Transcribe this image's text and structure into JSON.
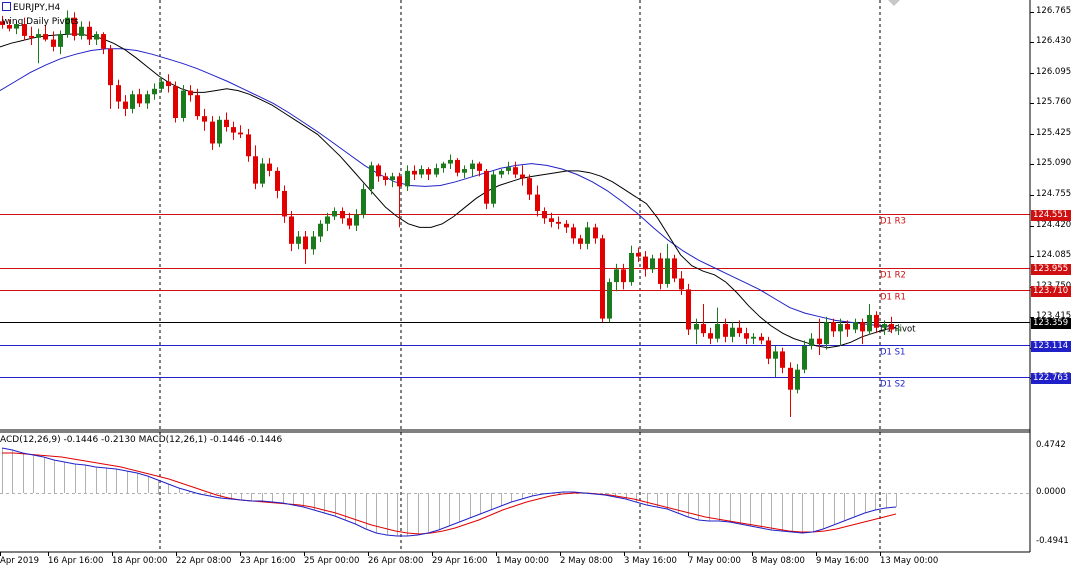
{
  "header": {
    "symbol_label": "EURJPY,H4",
    "indicator_label": "wing Daily Pivots"
  },
  "macd_label": "ACD(12,26,9) -0.1446 -0.2130 MACD(12,26,1) -0.1446 -0.1446",
  "colors": {
    "bull": "#1b7a1b",
    "bear": "#e00000",
    "ma_fast": "#000000",
    "ma_slow": "#2020c8",
    "resistance": "#d01010",
    "support": "#2020c8",
    "pivot": "#000000",
    "macd_signal": "#e00000",
    "macd_main": "#2020c8",
    "histogram": "#b0b0b0"
  },
  "price_axis": {
    "ticks": [
      "126.765",
      "126.430",
      "126.095",
      "125.760",
      "125.425",
      "125.090",
      "124.755",
      "124.420",
      "124.085",
      "123.750",
      "123.415",
      "123.080",
      "122.745"
    ],
    "ylim": [
      122.2,
      126.85
    ]
  },
  "pivots": [
    {
      "name": "D1 R3",
      "value": 124.551,
      "tag": "124.551",
      "kind": "resistance"
    },
    {
      "name": "D1 R2",
      "value": 123.955,
      "tag": "123.955",
      "kind": "resistance"
    },
    {
      "name": "D1 R1",
      "value": 123.71,
      "tag": "123.710",
      "kind": "resistance"
    },
    {
      "name": "D1 Pivot",
      "value": 123.359,
      "tag": "123.359",
      "kind": "pivot"
    },
    {
      "name": "D1 S1",
      "value": 123.114,
      "tag": "123.114",
      "kind": "support"
    },
    {
      "name": "D1 S2",
      "value": 122.763,
      "tag": "122.763",
      "kind": "support"
    }
  ],
  "macd_axis": {
    "ticks": [
      "0.4742",
      "0.0000",
      "-0.4941"
    ],
    "ylim": [
      -0.55,
      0.53
    ]
  },
  "x_axis": {
    "ticks": [
      "Apr 2019",
      "16 Apr 16:00",
      "18 Apr 00:00",
      "22 Apr 08:00",
      "23 Apr 16:00",
      "25 Apr 00:00",
      "26 Apr 08:00",
      "29 Apr 16:00",
      "1 May 00:00",
      "2 May 08:00",
      "3 May 16:00",
      "7 May 00:00",
      "8 May 08:00",
      "9 May 16:00",
      "13 May 00:00"
    ]
  },
  "chart_data": {
    "type": "candlestick",
    "symbol": "EURJPY",
    "timeframe": "H4",
    "candles_ohlc": [
      [
        126.66,
        126.72,
        126.58,
        126.62
      ],
      [
        126.62,
        126.68,
        126.55,
        126.58
      ],
      [
        126.58,
        126.66,
        126.52,
        126.63
      ],
      [
        126.63,
        126.7,
        126.45,
        126.5
      ],
      [
        126.5,
        126.6,
        126.4,
        126.48
      ],
      [
        126.48,
        126.58,
        126.2,
        126.52
      ],
      [
        126.52,
        126.62,
        126.44,
        126.46
      ],
      [
        126.46,
        126.55,
        126.33,
        126.38
      ],
      [
        126.38,
        126.56,
        126.3,
        126.52
      ],
      [
        126.52,
        126.78,
        126.48,
        126.7
      ],
      [
        126.7,
        126.76,
        126.45,
        126.5
      ],
      [
        126.5,
        126.66,
        126.46,
        126.6
      ],
      [
        126.6,
        126.66,
        126.4,
        126.46
      ],
      [
        126.46,
        126.55,
        126.4,
        126.52
      ],
      [
        126.52,
        126.54,
        126.3,
        126.36
      ],
      [
        126.36,
        126.4,
        125.7,
        125.96
      ],
      [
        125.96,
        126.02,
        125.7,
        125.78
      ],
      [
        125.78,
        125.85,
        125.62,
        125.7
      ],
      [
        125.7,
        125.9,
        125.65,
        125.86
      ],
      [
        125.86,
        125.92,
        125.72,
        125.76
      ],
      [
        125.76,
        125.9,
        125.7,
        125.86
      ],
      [
        125.86,
        125.98,
        125.8,
        125.92
      ],
      [
        125.92,
        126.05,
        125.88,
        126.0
      ],
      [
        126.0,
        126.08,
        125.88,
        125.95
      ],
      [
        125.95,
        126.0,
        125.55,
        125.6
      ],
      [
        125.6,
        125.96,
        125.56,
        125.9
      ],
      [
        125.9,
        125.96,
        125.78,
        125.85
      ],
      [
        125.85,
        125.92,
        125.58,
        125.62
      ],
      [
        125.62,
        125.7,
        125.46,
        125.56
      ],
      [
        125.56,
        125.62,
        125.25,
        125.32
      ],
      [
        125.32,
        125.62,
        125.28,
        125.58
      ],
      [
        125.58,
        125.66,
        125.45,
        125.5
      ],
      [
        125.5,
        125.56,
        125.36,
        125.44
      ],
      [
        125.44,
        125.52,
        125.38,
        125.42
      ],
      [
        125.42,
        125.48,
        125.12,
        125.18
      ],
      [
        125.18,
        125.3,
        124.82,
        124.88
      ],
      [
        124.88,
        125.16,
        124.84,
        125.1
      ],
      [
        125.1,
        125.16,
        124.96,
        125.02
      ],
      [
        125.02,
        125.06,
        124.72,
        124.8
      ],
      [
        124.8,
        124.86,
        124.45,
        124.52
      ],
      [
        124.52,
        124.58,
        124.14,
        124.22
      ],
      [
        124.22,
        124.36,
        124.16,
        124.3
      ],
      [
        124.3,
        124.36,
        124.0,
        124.16
      ],
      [
        124.16,
        124.36,
        124.1,
        124.3
      ],
      [
        124.3,
        124.48,
        124.24,
        124.44
      ],
      [
        124.44,
        124.56,
        124.36,
        124.52
      ],
      [
        124.52,
        124.62,
        124.48,
        124.58
      ],
      [
        124.58,
        124.62,
        124.44,
        124.5
      ],
      [
        124.5,
        124.56,
        124.38,
        124.42
      ],
      [
        124.42,
        124.6,
        124.36,
        124.54
      ],
      [
        124.54,
        124.88,
        124.5,
        124.82
      ],
      [
        124.82,
        125.12,
        124.76,
        125.08
      ],
      [
        125.08,
        125.1,
        124.9,
        124.96
      ],
      [
        124.96,
        125.0,
        124.86,
        124.92
      ],
      [
        124.92,
        125.0,
        124.84,
        124.96
      ],
      [
        124.96,
        125.0,
        124.4,
        124.85
      ],
      [
        124.85,
        125.08,
        124.8,
        125.02
      ],
      [
        125.02,
        125.08,
        124.92,
        124.98
      ],
      [
        124.98,
        125.08,
        124.94,
        125.04
      ],
      [
        125.04,
        125.06,
        124.92,
        124.98
      ],
      [
        124.98,
        125.1,
        124.95,
        125.05
      ],
      [
        125.05,
        125.12,
        125.0,
        125.1
      ],
      [
        125.1,
        125.2,
        125.04,
        125.14
      ],
      [
        125.14,
        125.16,
        124.96,
        125.0
      ],
      [
        125.0,
        125.08,
        124.94,
        125.04
      ],
      [
        125.04,
        125.14,
        124.96,
        125.1
      ],
      [
        125.1,
        125.12,
        124.96,
        125.02
      ],
      [
        125.02,
        125.04,
        124.6,
        124.66
      ],
      [
        124.66,
        125.02,
        124.62,
        124.98
      ],
      [
        124.98,
        125.04,
        124.94,
        125.02
      ],
      [
        125.02,
        125.12,
        124.98,
        125.06
      ],
      [
        125.06,
        125.12,
        124.94,
        124.98
      ],
      [
        124.98,
        125.08,
        124.86,
        124.94
      ],
      [
        124.94,
        124.98,
        124.7,
        124.76
      ],
      [
        124.76,
        124.86,
        124.52,
        124.58
      ],
      [
        124.58,
        124.62,
        124.44,
        124.5
      ],
      [
        124.5,
        124.56,
        124.4,
        124.46
      ],
      [
        124.46,
        124.52,
        124.38,
        124.44
      ],
      [
        124.44,
        124.48,
        124.34,
        124.4
      ],
      [
        124.4,
        124.44,
        124.22,
        124.28
      ],
      [
        124.28,
        124.32,
        124.16,
        124.22
      ],
      [
        124.22,
        124.46,
        124.16,
        124.4
      ],
      [
        124.4,
        124.44,
        124.22,
        124.28
      ],
      [
        124.28,
        124.32,
        123.36,
        123.4
      ],
      [
        123.4,
        123.84,
        123.36,
        123.8
      ],
      [
        123.8,
        124.0,
        123.7,
        123.94
      ],
      [
        123.94,
        124.0,
        123.72,
        123.8
      ],
      [
        123.8,
        124.2,
        123.76,
        124.12
      ],
      [
        124.12,
        124.18,
        124.02,
        124.08
      ],
      [
        124.08,
        124.14,
        123.86,
        123.94
      ],
      [
        123.94,
        124.1,
        123.9,
        124.06
      ],
      [
        124.06,
        124.12,
        123.72,
        123.78
      ],
      [
        123.78,
        124.22,
        123.74,
        124.06
      ],
      [
        124.06,
        124.1,
        123.8,
        123.84
      ],
      [
        123.84,
        123.92,
        123.66,
        123.72
      ],
      [
        123.72,
        123.78,
        123.22,
        123.28
      ],
      [
        123.28,
        123.4,
        123.12,
        123.34
      ],
      [
        123.34,
        123.56,
        123.2,
        123.24
      ],
      [
        123.24,
        123.3,
        123.12,
        123.18
      ],
      [
        123.18,
        123.52,
        123.14,
        123.34
      ],
      [
        123.34,
        123.4,
        123.14,
        123.2
      ],
      [
        123.2,
        123.36,
        123.14,
        123.3
      ],
      [
        123.3,
        123.38,
        123.2,
        123.24
      ],
      [
        123.24,
        123.3,
        123.12,
        123.18
      ],
      [
        123.18,
        123.24,
        123.12,
        123.2
      ],
      [
        123.2,
        123.24,
        123.12,
        123.16
      ],
      [
        123.16,
        123.2,
        122.9,
        122.96
      ],
      [
        122.96,
        123.1,
        122.76,
        123.04
      ],
      [
        123.04,
        123.08,
        122.8,
        122.86
      ],
      [
        122.86,
        122.92,
        122.32,
        122.62
      ],
      [
        122.62,
        122.9,
        122.58,
        122.84
      ],
      [
        122.84,
        123.16,
        122.8,
        123.1
      ],
      [
        123.1,
        123.24,
        123.06,
        123.18
      ],
      [
        123.18,
        123.4,
        123.0,
        123.12
      ],
      [
        123.12,
        123.42,
        123.06,
        123.36
      ],
      [
        123.36,
        123.4,
        123.2,
        123.26
      ],
      [
        123.26,
        123.4,
        123.1,
        123.34
      ],
      [
        123.34,
        123.38,
        123.2,
        123.28
      ],
      [
        123.28,
        123.4,
        123.24,
        123.36
      ],
      [
        123.36,
        123.4,
        123.12,
        123.26
      ],
      [
        123.26,
        123.56,
        123.22,
        123.44
      ],
      [
        123.44,
        123.48,
        123.24,
        123.3
      ],
      [
        123.3,
        123.38,
        123.22,
        123.34
      ],
      [
        123.34,
        123.42,
        123.24,
        123.28
      ],
      [
        123.28,
        123.34,
        123.22,
        123.28
      ]
    ],
    "ma_fast": [
      126.38,
      126.42,
      126.45,
      126.48,
      126.5,
      126.51,
      126.52,
      126.52,
      126.5,
      126.47,
      126.42,
      126.35,
      126.26,
      126.16,
      126.06,
      125.98,
      125.92,
      125.88,
      125.88,
      125.9,
      125.92,
      125.9,
      125.86,
      125.8,
      125.74,
      125.66,
      125.58,
      125.5,
      125.42,
      125.3,
      125.18,
      125.04,
      124.9,
      124.76,
      124.62,
      124.52,
      124.44,
      124.4,
      124.4,
      124.44,
      124.52,
      124.62,
      124.72,
      124.8,
      124.86,
      124.9,
      124.94,
      124.96,
      124.98,
      125.0,
      125.02,
      125.02,
      125.0,
      124.96,
      124.9,
      124.82,
      124.74,
      124.66,
      124.5,
      124.3,
      124.1,
      123.98,
      123.92,
      123.88,
      123.8,
      123.68,
      123.54,
      123.42,
      123.32,
      123.24,
      123.18,
      123.14,
      123.1,
      123.08,
      123.1,
      123.14,
      123.2,
      123.24,
      123.28,
      123.3
    ],
    "ma_slow": [
      125.9,
      126.0,
      126.1,
      126.18,
      126.25,
      126.3,
      126.34,
      126.36,
      126.36,
      126.34,
      126.3,
      126.25,
      126.2,
      126.14,
      126.07,
      126.0,
      125.92,
      125.84,
      125.76,
      125.66,
      125.55,
      125.44,
      125.32,
      125.2,
      125.08,
      124.98,
      124.9,
      124.86,
      124.85,
      124.86,
      124.9,
      124.95,
      125.0,
      125.05,
      125.08,
      125.1,
      125.08,
      125.04,
      124.98,
      124.9,
      124.8,
      124.68,
      124.55,
      124.4,
      124.26,
      124.14,
      124.04,
      123.96,
      123.88,
      123.8,
      123.72,
      123.62,
      123.52,
      123.46,
      123.42,
      123.38,
      123.36,
      123.34,
      123.32,
      123.3
    ],
    "macd_histogram": [
      0.45,
      0.43,
      0.4,
      0.38,
      0.36,
      0.33,
      0.31,
      0.29,
      0.28,
      0.26,
      0.25,
      0.24,
      0.22,
      0.2,
      0.17,
      0.13,
      0.09,
      0.05,
      0.02,
      -0.01,
      -0.03,
      -0.05,
      -0.06,
      -0.07,
      -0.08,
      -0.08,
      -0.09,
      -0.1,
      -0.12,
      -0.14,
      -0.17,
      -0.2,
      -0.23,
      -0.27,
      -0.31,
      -0.36,
      -0.4,
      -0.42,
      -0.43,
      -0.43,
      -0.42,
      -0.4,
      -0.37,
      -0.33,
      -0.29,
      -0.25,
      -0.21,
      -0.17,
      -0.13,
      -0.09,
      -0.06,
      -0.03,
      -0.01,
      0.0,
      0.01,
      0.01,
      0.0,
      -0.01,
      -0.02,
      -0.04,
      -0.06,
      -0.09,
      -0.12,
      -0.14,
      -0.16,
      -0.2,
      -0.24,
      -0.27,
      -0.28,
      -0.28,
      -0.29,
      -0.31,
      -0.33,
      -0.35,
      -0.37,
      -0.38,
      -0.39,
      -0.4,
      -0.39,
      -0.36,
      -0.32,
      -0.28,
      -0.24,
      -0.2,
      -0.17,
      -0.15,
      -0.14
    ],
    "macd_signal": [
      0.4,
      0.4,
      0.39,
      0.38,
      0.37,
      0.36,
      0.34,
      0.32,
      0.3,
      0.28,
      0.26,
      0.23,
      0.2,
      0.17,
      0.14,
      0.1,
      0.06,
      0.02,
      -0.02,
      -0.05,
      -0.07,
      -0.08,
      -0.09,
      -0.1,
      -0.11,
      -0.12,
      -0.14,
      -0.17,
      -0.2,
      -0.24,
      -0.28,
      -0.32,
      -0.35,
      -0.38,
      -0.4,
      -0.41,
      -0.4,
      -0.38,
      -0.35,
      -0.31,
      -0.27,
      -0.22,
      -0.17,
      -0.13,
      -0.09,
      -0.06,
      -0.03,
      -0.01,
      0.0,
      0.0,
      -0.01,
      -0.02,
      -0.04,
      -0.06,
      -0.09,
      -0.12,
      -0.15,
      -0.18,
      -0.21,
      -0.24,
      -0.26,
      -0.28,
      -0.3,
      -0.32,
      -0.34,
      -0.36,
      -0.38,
      -0.39,
      -0.39,
      -0.38,
      -0.36,
      -0.33,
      -0.3,
      -0.27,
      -0.24,
      -0.21
    ],
    "ylim": [
      122.2,
      126.85
    ]
  }
}
